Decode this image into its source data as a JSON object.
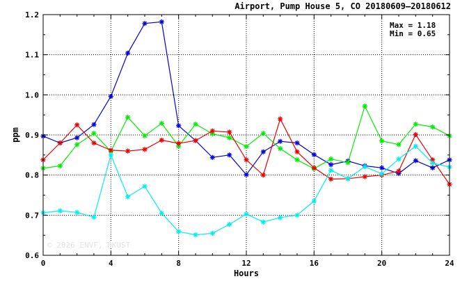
{
  "chart_data": {
    "type": "line",
    "title": "Airport, Pump House 5, CO 20180609–20180612",
    "max_label": "Max = 1.18",
    "min_label": "Min = 0.65",
    "watermark": "© 2026  ENVF, HKUST",
    "xlabel": "Hours",
    "ylabel": "ppm",
    "xlim": [
      0,
      24
    ],
    "ylim": [
      0.6,
      1.2
    ],
    "x_ticks": [
      "0",
      "4",
      "8",
      "12",
      "16",
      "20",
      "24"
    ],
    "y_ticks": [
      "0.6",
      "0.7",
      "0.8",
      "0.9",
      "1.0",
      "1.1",
      "1.2"
    ],
    "grid": true,
    "x": [
      0,
      1,
      2,
      3,
      4,
      5,
      6,
      7,
      8,
      9,
      10,
      11,
      12,
      13,
      14,
      15,
      16,
      17,
      18,
      19,
      20,
      21,
      22,
      23,
      24
    ],
    "series": [
      {
        "color": "#0000dd",
        "values": [
          0.897,
          0.88,
          0.893,
          0.926,
          0.996,
          1.104,
          1.178,
          1.182,
          0.923,
          0.886,
          0.844,
          0.85,
          0.801,
          0.858,
          0.884,
          0.88,
          0.851,
          0.826,
          0.835,
          0.823,
          0.818,
          0.804,
          0.836,
          0.818,
          0.838
        ]
      },
      {
        "color": "#00ee00",
        "values": [
          0.817,
          0.823,
          0.876,
          0.904,
          0.859,
          0.944,
          0.898,
          0.929,
          0.872,
          0.927,
          0.903,
          0.893,
          0.871,
          0.904,
          0.866,
          0.838,
          0.816,
          0.84,
          0.831,
          0.972,
          0.885,
          0.876,
          0.927,
          0.92,
          0.898
        ]
      },
      {
        "color": "#ee0000",
        "values": [
          0.838,
          0.88,
          0.925,
          0.88,
          0.862,
          0.86,
          0.864,
          0.887,
          0.879,
          0.886,
          0.91,
          0.907,
          0.838,
          0.8,
          0.94,
          0.858,
          0.818,
          0.79,
          0.791,
          0.796,
          0.8,
          0.81,
          0.901,
          0.838,
          0.777
        ]
      },
      {
        "color": "#00eeee",
        "values": [
          0.706,
          0.711,
          0.707,
          0.695,
          0.85,
          0.746,
          0.772,
          0.705,
          0.659,
          0.651,
          0.655,
          0.677,
          0.703,
          0.683,
          0.694,
          0.7,
          0.735,
          0.812,
          0.791,
          0.821,
          0.803,
          0.84,
          0.872,
          0.83,
          0.82
        ]
      }
    ],
    "legend": "none"
  }
}
